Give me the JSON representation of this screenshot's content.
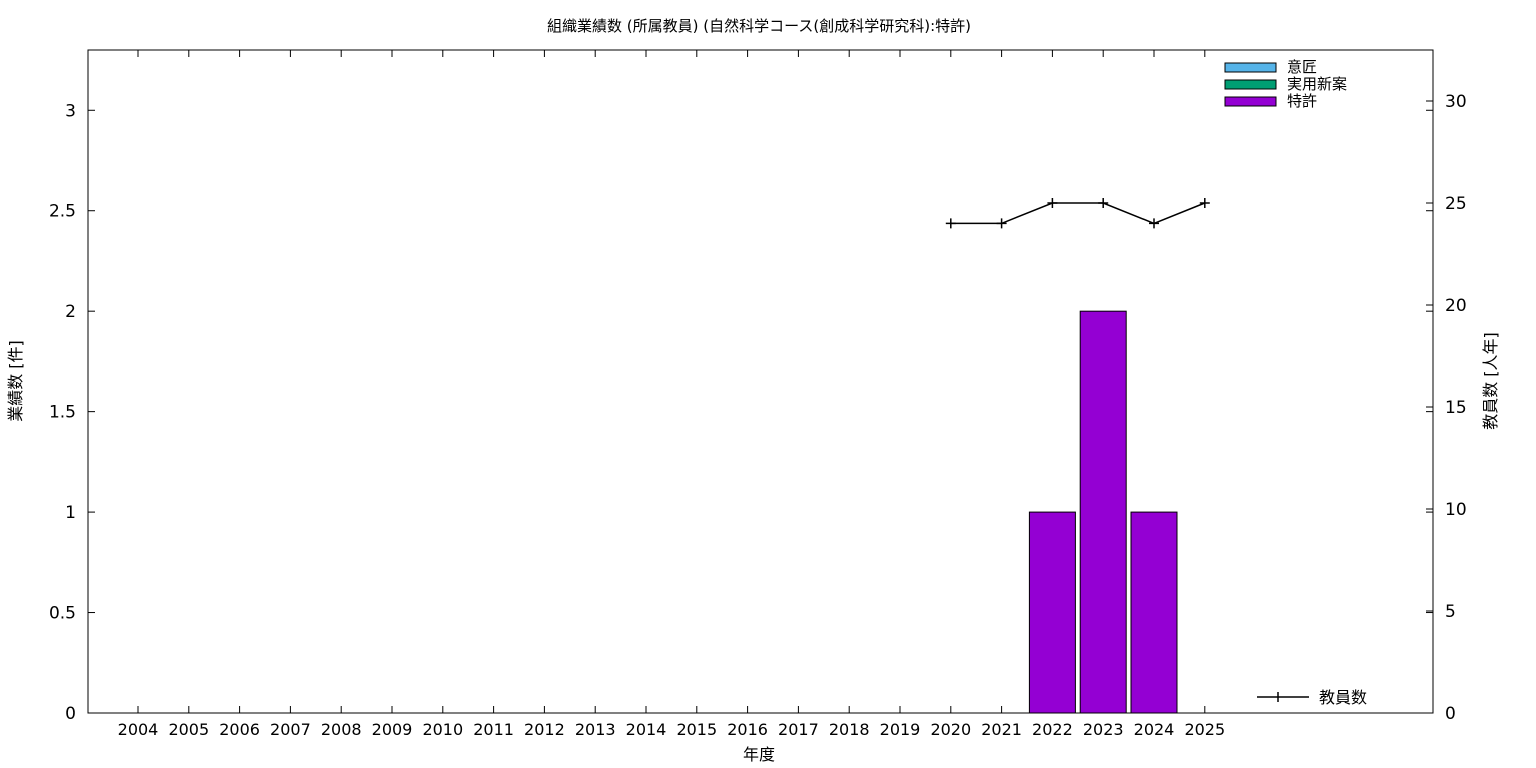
{
  "chart_data": {
    "type": "bar",
    "title": "組織業績数 (所属教員) (自然科学コース(創成科学研究科):特許)",
    "xlabel": "年度",
    "ylabel": "業績数 [件]",
    "y2label": "教員数 [人年]",
    "categories": [
      "2004",
      "2005",
      "2006",
      "2007",
      "2008",
      "2009",
      "2010",
      "2011",
      "2012",
      "2013",
      "2014",
      "2015",
      "2016",
      "2017",
      "2018",
      "2019",
      "2020",
      "2021",
      "2022",
      "2023",
      "2024",
      "2025"
    ],
    "ylim": [
      0,
      3.3
    ],
    "yticks": [
      "0",
      "0.5",
      "1",
      "1.5",
      "2",
      "2.5",
      "3"
    ],
    "y2lim": [
      0,
      32.5
    ],
    "y2ticks": [
      "0",
      "5",
      "10",
      "15",
      "20",
      "25",
      "30"
    ],
    "series": [
      {
        "name": "意匠",
        "kind": "bar",
        "color": "#56b4e9",
        "values": [
          0,
          0,
          0,
          0,
          0,
          0,
          0,
          0,
          0,
          0,
          0,
          0,
          0,
          0,
          0,
          0,
          0,
          0,
          0,
          0,
          0,
          0
        ]
      },
      {
        "name": "実用新案",
        "kind": "bar",
        "color": "#009e73",
        "values": [
          0,
          0,
          0,
          0,
          0,
          0,
          0,
          0,
          0,
          0,
          0,
          0,
          0,
          0,
          0,
          0,
          0,
          0,
          0,
          0,
          0,
          0
        ]
      },
      {
        "name": "特許",
        "kind": "bar",
        "color": "#9400d3",
        "values": [
          0,
          0,
          0,
          0,
          0,
          0,
          0,
          0,
          0,
          0,
          0,
          0,
          0,
          0,
          0,
          0,
          0,
          0,
          1,
          2,
          1,
          0
        ]
      },
      {
        "name": "教員数",
        "kind": "line",
        "axis": "y2",
        "color": "#000000",
        "x": [
          "2020",
          "2021",
          "2022",
          "2023",
          "2024",
          "2025"
        ],
        "values": [
          24,
          24,
          25,
          25,
          24,
          25
        ]
      }
    ],
    "legend_bars": "top-right",
    "legend_line": "bottom-right",
    "grid": false
  }
}
